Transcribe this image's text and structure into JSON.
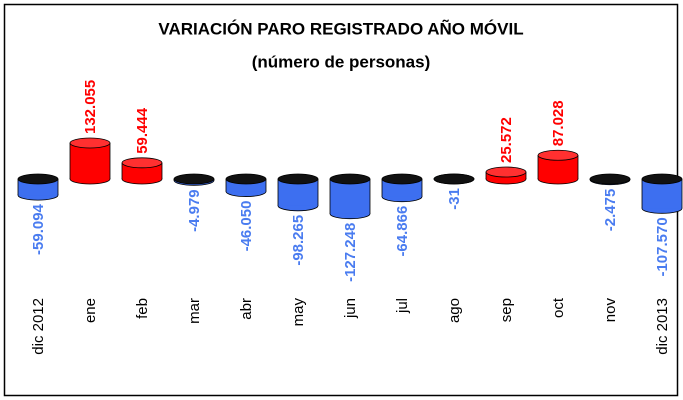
{
  "chart_data": {
    "type": "bar",
    "title": "VARIACIÓN PARO REGISTRADO AÑO MÓVIL",
    "subtitle": "(número de personas)",
    "categories": [
      "dic 2012",
      "ene",
      "feb",
      "mar",
      "abr",
      "may",
      "jun",
      "jul",
      "ago",
      "sep",
      "oct",
      "nov",
      "dic 2013"
    ],
    "values": [
      -59094,
      132055,
      59444,
      -4979,
      -46050,
      -98265,
      -127248,
      -64866,
      -31,
      25572,
      87028,
      -2475,
      -107570
    ],
    "value_labels": [
      "-59.094",
      "132.055",
      "59.444",
      "-4.979",
      "-46.050",
      "-98.265",
      "-127.248",
      "-64.866",
      "-31",
      "25.572",
      "87.028",
      "-2.475",
      "-107.570"
    ],
    "color_positive": "#ff0000",
    "color_negative": "#3d6ff0",
    "label_color_positive": "#ff0000",
    "label_color_negative": "#4a7cf0"
  }
}
